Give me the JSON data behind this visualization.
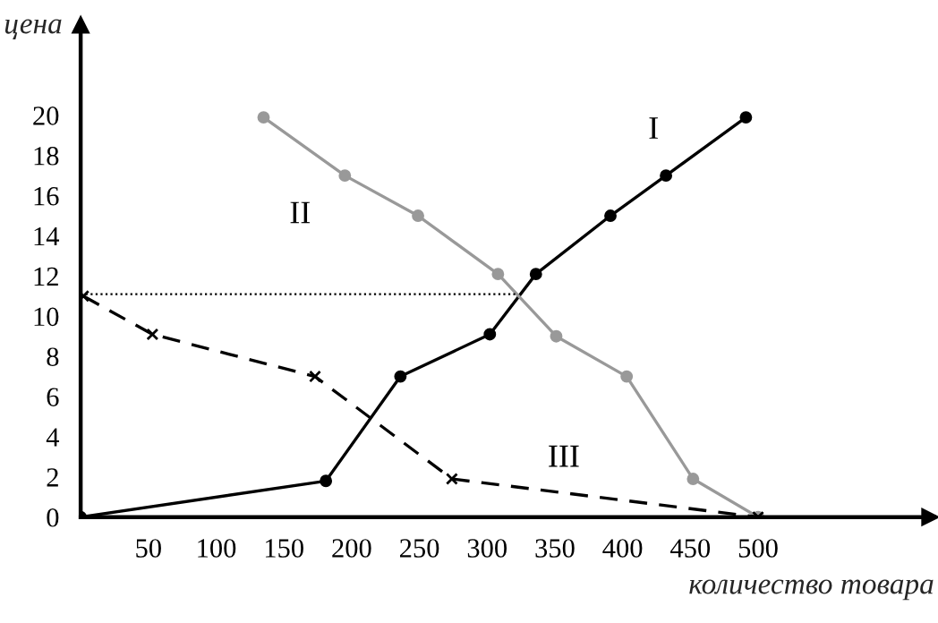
{
  "chart_data": {
    "type": "line",
    "xlabel": "количество товара",
    "ylabel": "цена",
    "xlim": [
      0,
      630
    ],
    "ylim": [
      0,
      24.5
    ],
    "xticks": [
      50,
      100,
      150,
      200,
      250,
      300,
      350,
      400,
      450,
      500
    ],
    "yticks": [
      {
        "value": 0,
        "label": "0"
      },
      2,
      4,
      6,
      8,
      10,
      12,
      14,
      16,
      18,
      20
    ],
    "grid": false,
    "legend": false,
    "series": [
      {
        "name": "I",
        "color": "#000000",
        "marker": "circle",
        "line_style": "solid",
        "x": [
          0,
          181,
          236,
          302,
          336,
          391,
          432,
          491
        ],
        "values": [
          0,
          1.8,
          7.0,
          9.1,
          12.1,
          15.0,
          17.0,
          19.9
        ]
      },
      {
        "name": "II",
        "color": "#999999",
        "marker": "circle",
        "line_style": "solid",
        "x": [
          135,
          195,
          249,
          308,
          351,
          403,
          452,
          500
        ],
        "values": [
          19.9,
          17.0,
          15.0,
          12.1,
          9.0,
          7.0,
          1.9,
          0
        ]
      },
      {
        "name": "III",
        "color": "#000000",
        "marker": "cross",
        "line_style": "dashed",
        "x": [
          2,
          53,
          173,
          274,
          500
        ],
        "values": [
          11.0,
          9.1,
          7.0,
          1.9,
          0
        ]
      },
      {
        "color": "#000000",
        "marker": "none",
        "line_style": "dotted",
        "x": [
          0,
          323
        ],
        "values": [
          11.1,
          11.1
        ]
      }
    ]
  }
}
